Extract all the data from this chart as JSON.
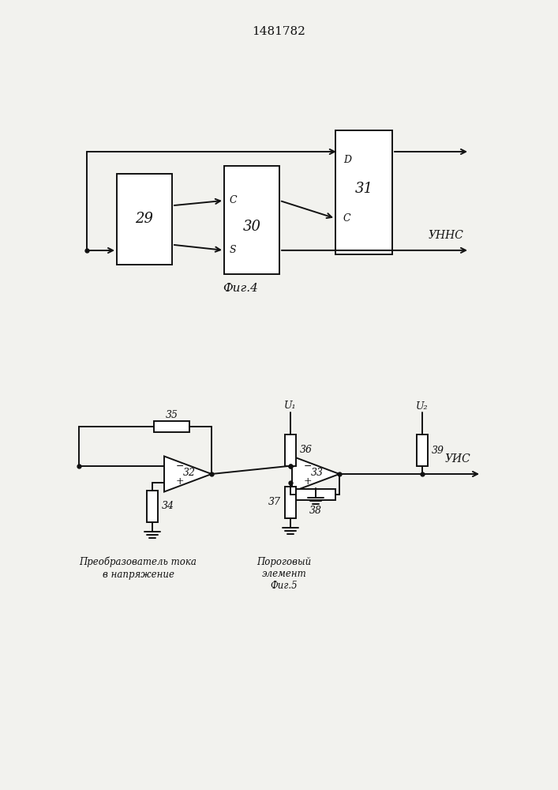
{
  "title": "1481782",
  "fig4_caption": "Фиг.4",
  "fig5_caption": "Фиг.5",
  "label_29": "29",
  "label_30": "30",
  "label_31": "31",
  "label_32": "32",
  "label_33": "33",
  "label_34": "34",
  "label_35": "35",
  "label_36": "36",
  "label_37": "37",
  "label_38": "38",
  "label_39": "39",
  "label_C1": "C",
  "label_S": "S",
  "label_D": "D",
  "label_C2": "C",
  "label_UNNC": "УННС",
  "label_UIS": "УИС",
  "label_U1": "U₁",
  "label_U2": "U₂",
  "label_minus": "−",
  "label_plus": "+",
  "label_converter": "Преобразователь тока\nв напряжение",
  "label_threshold": "Пороговый\nэлемент",
  "bg_color": "#f2f2ee",
  "line_color": "#111111",
  "text_color": "#111111"
}
